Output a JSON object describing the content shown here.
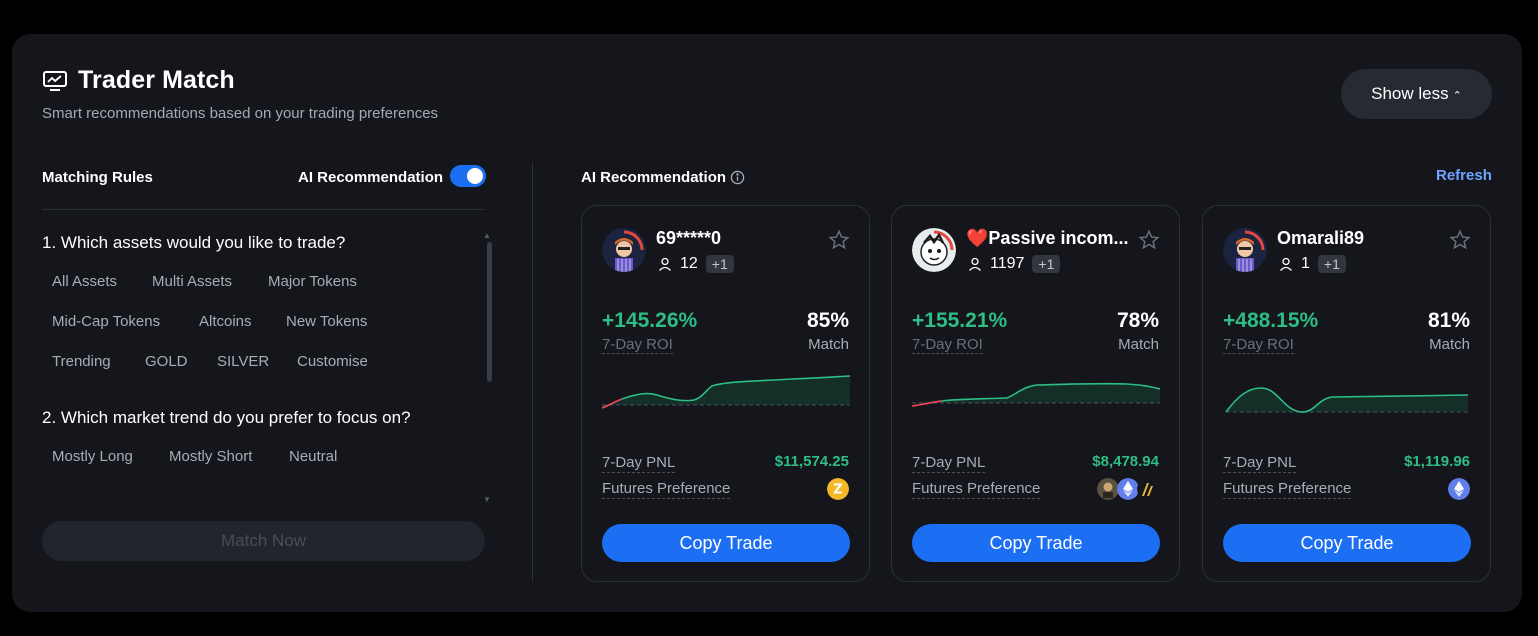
{
  "header": {
    "title": "Trader Match",
    "subtitle": "Smart recommendations based on your trading preferences",
    "show_less_label": "Show less"
  },
  "rules": {
    "label": "Matching Rules",
    "ai_toggle_label": "AI Recommendation",
    "ai_toggle_on": true,
    "question1": "1. Which assets would you like to trade?",
    "assets": [
      "All Assets",
      "Multi Assets",
      "Major Tokens",
      "Mid-Cap Tokens",
      "Altcoins",
      "New Tokens",
      "Trending",
      "GOLD",
      "SILVER",
      "Customise"
    ],
    "question2": "2. Which market trend do you prefer to focus on?",
    "trends": [
      "Mostly Long",
      "Mostly Short",
      "Neutral"
    ],
    "match_button": "Match Now"
  },
  "recommendations": {
    "title": "AI Recommendation",
    "refresh_label": "Refresh",
    "cards": [
      {
        "name": "69*****0",
        "heart": false,
        "followers": "12",
        "extra": "+1",
        "roi": "+145.26%",
        "roi_label": "7-Day ROI",
        "match_pct": "85%",
        "match_label": "Match",
        "pnl_label": "7-Day PNL",
        "pnl_value": "$11,574.25",
        "futures_label": "Futures Preference",
        "coins": [
          "zec-coin-icon"
        ],
        "copy_label": "Copy Trade"
      },
      {
        "name": "Passive incom...",
        "heart": true,
        "followers": "1197",
        "extra": "+1",
        "roi": "+155.21%",
        "roi_label": "7-Day ROI",
        "match_pct": "78%",
        "match_label": "Match",
        "pnl_label": "7-Day PNL",
        "pnl_value": "$8,478.94",
        "futures_label": "Futures Preference",
        "coins": [
          "meme-coin-icon",
          "eth-coin-icon",
          "arb-coin-icon"
        ],
        "copy_label": "Copy Trade"
      },
      {
        "name": "Omarali89",
        "heart": false,
        "followers": "1",
        "extra": "+1",
        "roi": "+488.15%",
        "roi_label": "7-Day ROI",
        "match_pct": "81%",
        "match_label": "Match",
        "pnl_label": "7-Day PNL",
        "pnl_value": "$1,119.96",
        "futures_label": "Futures Preference",
        "coins": [
          "eth-coin-icon"
        ],
        "copy_label": "Copy Trade"
      }
    ]
  },
  "colors": {
    "accent": "#1c6ef2",
    "positive": "#2ebd85",
    "negative": "#f6465d",
    "panel": "#14161c"
  }
}
